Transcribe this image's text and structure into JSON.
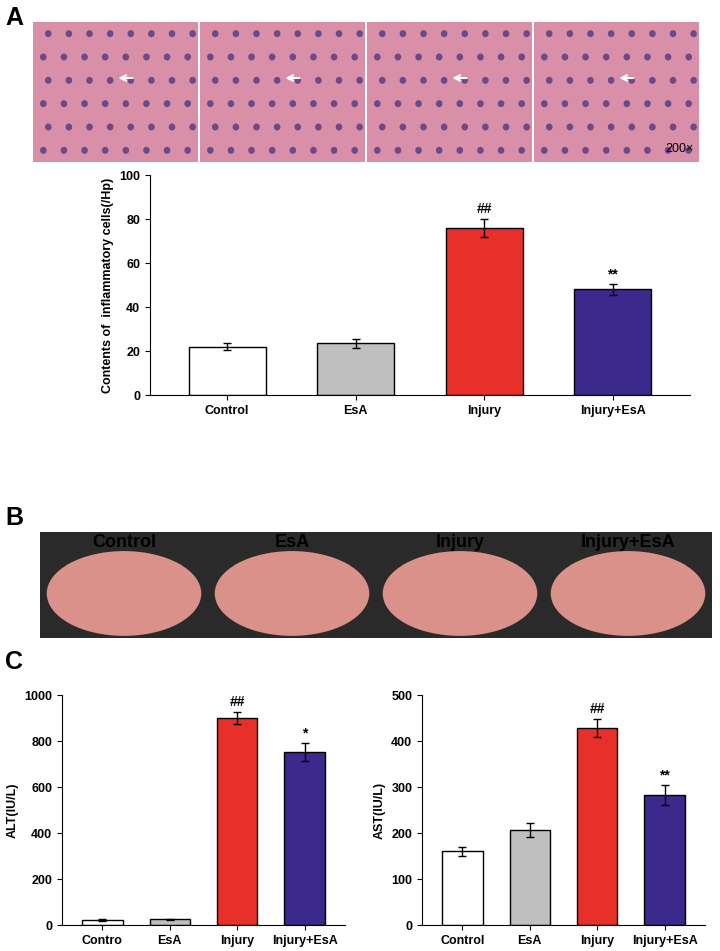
{
  "panel_labels": [
    "A",
    "B",
    "C"
  ],
  "histology": {
    "magnification": "200×"
  },
  "photo": {
    "labels": [
      "Control",
      "EsA",
      "Injury",
      "Injury+EsA"
    ]
  },
  "chart_data": [
    {
      "type": "bar",
      "y_label": "Contents of  inflammatory cells(/Hp)",
      "categories": [
        "Control",
        "EsA",
        "Injury",
        "Injury+EsA"
      ],
      "values": [
        22,
        23.5,
        76,
        48
      ],
      "errors": [
        1.5,
        2,
        4,
        2.5
      ],
      "colors": [
        "#ffffff",
        "#bfbfbf",
        "#e8302a",
        "#3b2a8c"
      ],
      "ylim": [
        0,
        100
      ],
      "yticks": [
        0,
        20,
        40,
        60,
        80,
        100
      ],
      "annotations": [
        {
          "category": "Injury",
          "text": "##"
        },
        {
          "category": "Injury+EsA",
          "text": "**"
        }
      ]
    },
    {
      "type": "bar",
      "y_label": "ALT(IU/L)",
      "categories": [
        "Contro",
        "EsA",
        "Injury",
        "Injury+EsA"
      ],
      "values": [
        22,
        25,
        900,
        752
      ],
      "errors": [
        3,
        3,
        25,
        40
      ],
      "colors": [
        "#ffffff",
        "#bfbfbf",
        "#e8302a",
        "#3b2a8c"
      ],
      "ylim": [
        0,
        1000
      ],
      "yticks": [
        0,
        200,
        400,
        600,
        800,
        1000
      ],
      "annotations": [
        {
          "category": "Injury",
          "text": "##"
        },
        {
          "category": "Injury+EsA",
          "text": "*"
        }
      ]
    },
    {
      "type": "bar",
      "y_label": "AST(IU/L)",
      "categories": [
        "Control",
        "EsA",
        "Injury",
        "Injury+EsA"
      ],
      "values": [
        160,
        207,
        428,
        282
      ],
      "errors": [
        10,
        15,
        20,
        22
      ],
      "colors": [
        "#ffffff",
        "#bfbfbf",
        "#e8302a",
        "#3b2a8c"
      ],
      "ylim": [
        0,
        500
      ],
      "yticks": [
        0,
        100,
        200,
        300,
        400,
        500
      ],
      "annotations": [
        {
          "category": "Injury",
          "text": "##"
        },
        {
          "category": "Injury+EsA",
          "text": "**"
        }
      ]
    }
  ]
}
